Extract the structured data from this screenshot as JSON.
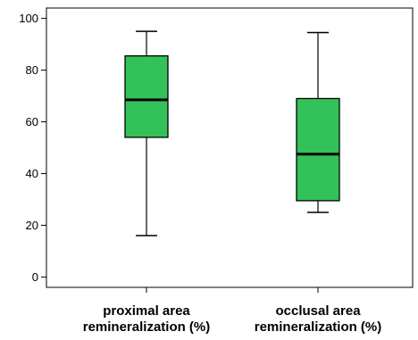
{
  "chart_data": {
    "type": "boxplot",
    "title": "",
    "xlabel": "",
    "ylabel": "",
    "ylim": [
      -4,
      104
    ],
    "yticks": [
      0,
      20,
      40,
      60,
      80,
      100
    ],
    "grid": false,
    "legend": "none",
    "box_color": "#33c25a",
    "categories": [
      [
        "proximal area",
        "remineralization (%)"
      ],
      [
        "occlusal area",
        "remineralization (%)"
      ]
    ],
    "boxes": [
      {
        "min": 16,
        "q1": 54,
        "median": 68.5,
        "q3": 85.5,
        "max": 95
      },
      {
        "min": 25,
        "q1": 29.5,
        "median": 47.5,
        "q3": 69,
        "max": 94.5
      }
    ]
  }
}
